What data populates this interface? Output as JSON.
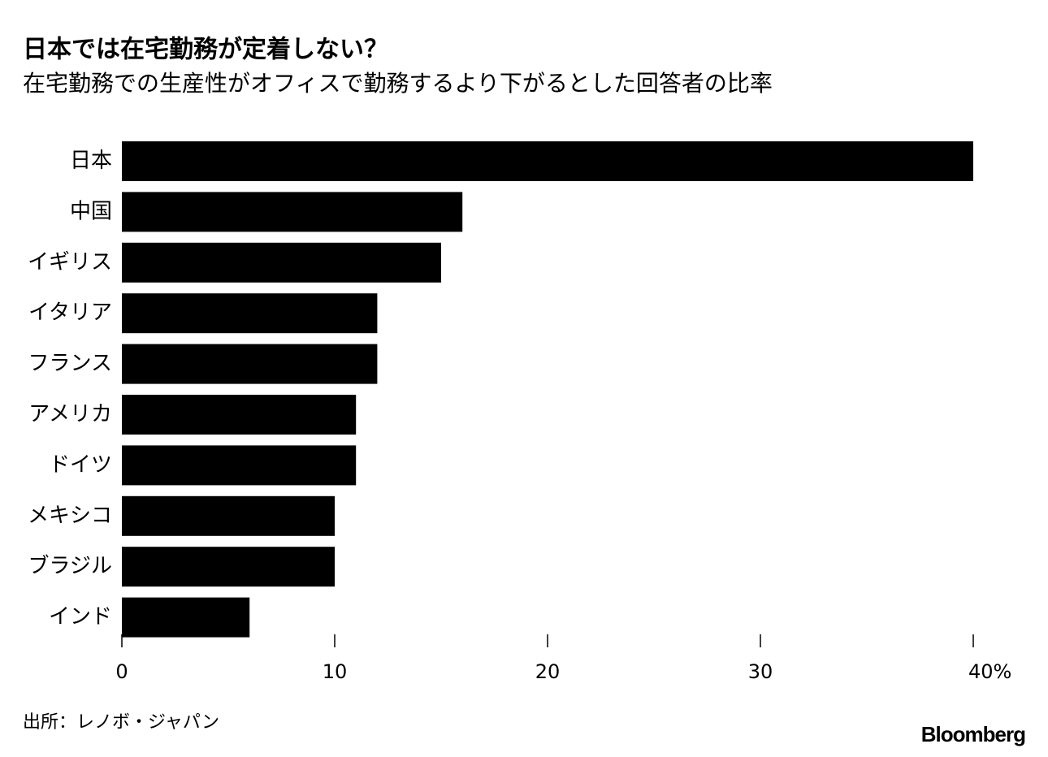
{
  "chart_data": {
    "type": "barh",
    "title": "日本では在宅勤務が定着しない？",
    "subtitle": "在宅勤務での生産性がオフィスで勤務するより下がるとした回答者の比率",
    "categories": [
      "日本",
      "中国",
      "イギリス",
      "イタリア",
      "フランス",
      "アメリカ",
      "ドイツ",
      "メキシコ",
      "ブラジル",
      "インド"
    ],
    "values": [
      40,
      16,
      15,
      12,
      12,
      11,
      11,
      10,
      10,
      6
    ],
    "color": "#000000",
    "xlim": [
      0,
      40
    ],
    "xticks": [
      0,
      10,
      20,
      30,
      {
        "value": 40,
        "label": "40%"
      }
    ],
    "source": "出所：レノボ・ジャパン",
    "logo": "Bloomberg"
  }
}
